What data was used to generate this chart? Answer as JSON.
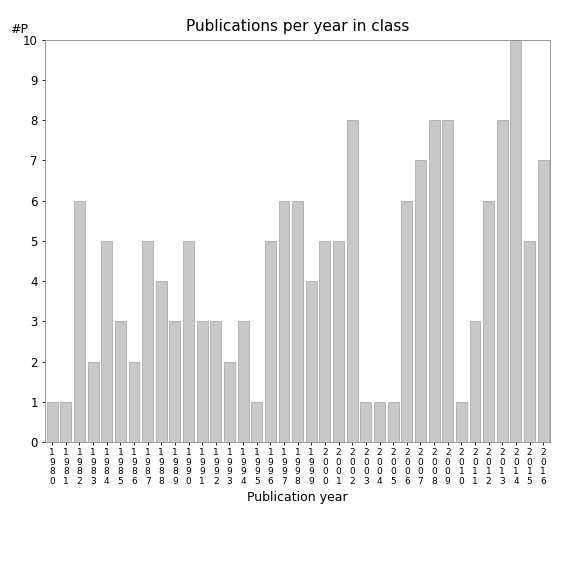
{
  "years": [
    "1980",
    "1981",
    "1982",
    "1983",
    "1984",
    "1985",
    "1986",
    "1987",
    "1988",
    "1989",
    "1990",
    "1991",
    "1992",
    "1993",
    "1994",
    "1995",
    "1996",
    "1997",
    "1998",
    "1999",
    "2000",
    "2001",
    "2002",
    "2003",
    "2004",
    "2005",
    "2006",
    "2007",
    "2008",
    "2009",
    "2010",
    "2011",
    "2012",
    "2013",
    "2014",
    "2015",
    "2016"
  ],
  "values": [
    1,
    1,
    6,
    2,
    5,
    3,
    2,
    5,
    4,
    3,
    5,
    3,
    3,
    2,
    3,
    1,
    5,
    6,
    6,
    4,
    5,
    5,
    8,
    1,
    1,
    1,
    6,
    7,
    8,
    8,
    1,
    3,
    6,
    8,
    10,
    5,
    7
  ],
  "bar_color": "#c8c8c8",
  "bar_edgecolor": "#a0a0a0",
  "title": "Publications per year in class",
  "xlabel": "Publication year",
  "ylabel": "#P",
  "ylim": [
    0,
    10
  ],
  "yticks": [
    0,
    1,
    2,
    3,
    4,
    5,
    6,
    7,
    8,
    9,
    10
  ],
  "background_color": "#ffffff",
  "title_fontsize": 11,
  "label_fontsize": 9
}
